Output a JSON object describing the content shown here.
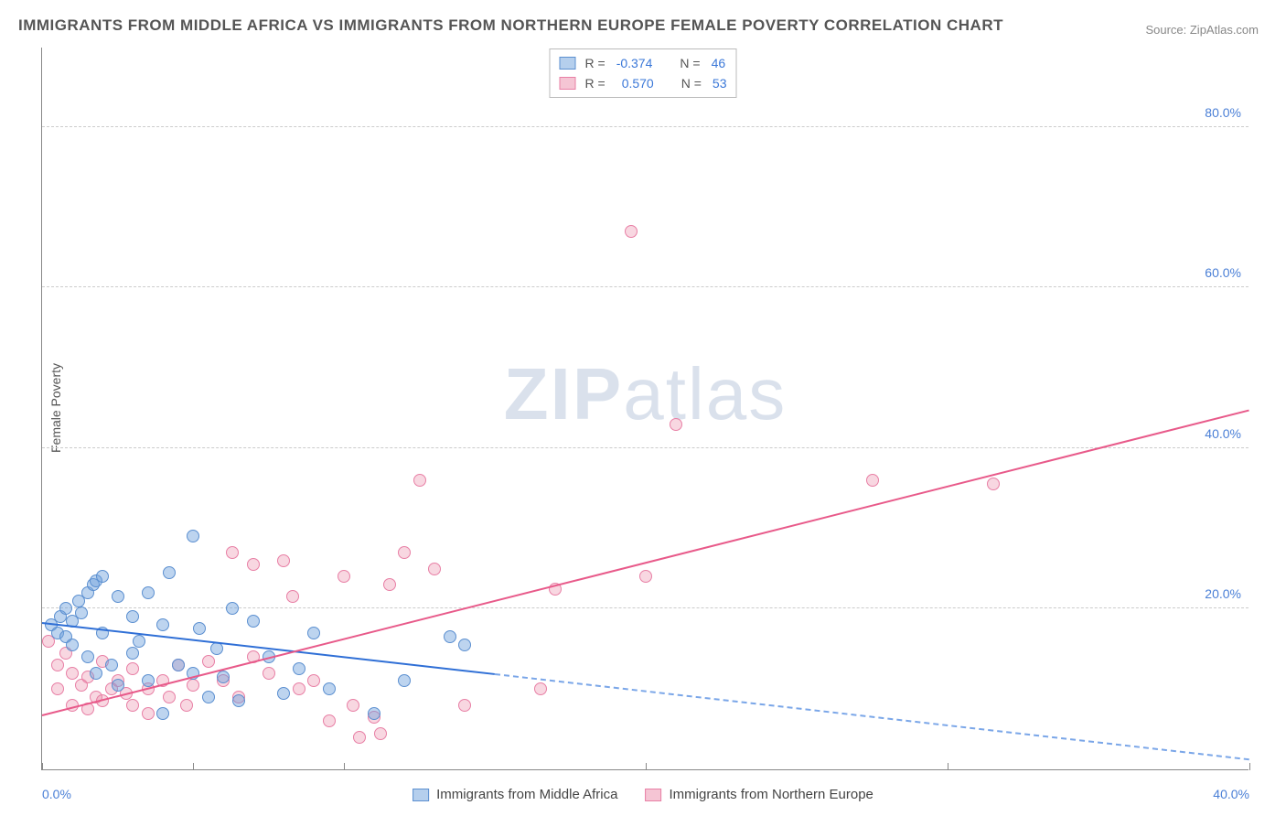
{
  "title": "IMMIGRANTS FROM MIDDLE AFRICA VS IMMIGRANTS FROM NORTHERN EUROPE FEMALE POVERTY CORRELATION CHART",
  "source_label": "Source: ",
  "source_site": "ZipAtlas.com",
  "ylabel": "Female Poverty",
  "watermark_bold": "ZIP",
  "watermark_rest": "atlas",
  "chart": {
    "type": "scatter",
    "background_color": "#ffffff",
    "grid_color": "#cccccc",
    "axis_color": "#888888",
    "tick_font_color": "#4a7fd6",
    "tick_fontsize": 14,
    "xlim": [
      0,
      40
    ],
    "ylim": [
      0,
      90
    ],
    "xticks": [
      0,
      5,
      10,
      20,
      30,
      40
    ],
    "xtick_labels": {
      "0": "0.0%",
      "40": "40.0%"
    },
    "yticks": [
      20,
      40,
      60,
      80
    ],
    "ytick_labels": {
      "20": "20.0%",
      "40": "40.0%",
      "60": "60.0%",
      "80": "80.0%"
    },
    "marker_radius": 7,
    "marker_fill_opacity": 0.4
  },
  "series": {
    "blue": {
      "label": "Immigrants from Middle Africa",
      "color_fill": "#6c9fdc",
      "color_stroke": "#5b8fd0",
      "R": "-0.374",
      "N": "46",
      "trend": {
        "x1": 0,
        "y1": 18.5,
        "x2": 40,
        "y2": 1.5,
        "solid_until_x": 15,
        "color": "#2f6fd6"
      },
      "points": [
        [
          0.3,
          18
        ],
        [
          0.5,
          17
        ],
        [
          0.6,
          19
        ],
        [
          0.8,
          16.5
        ],
        [
          0.8,
          20
        ],
        [
          1.0,
          18.5
        ],
        [
          1.0,
          15.5
        ],
        [
          1.2,
          21
        ],
        [
          1.3,
          19.5
        ],
        [
          1.5,
          14
        ],
        [
          1.5,
          22
        ],
        [
          1.7,
          23
        ],
        [
          1.8,
          12
        ],
        [
          1.8,
          23.5
        ],
        [
          2.0,
          17
        ],
        [
          2.0,
          24
        ],
        [
          2.3,
          13
        ],
        [
          2.5,
          21.5
        ],
        [
          2.5,
          10.5
        ],
        [
          3.0,
          14.5
        ],
        [
          3.0,
          19
        ],
        [
          3.2,
          16
        ],
        [
          3.5,
          11
        ],
        [
          3.5,
          22
        ],
        [
          4.0,
          7
        ],
        [
          4.0,
          18
        ],
        [
          4.2,
          24.5
        ],
        [
          4.5,
          13
        ],
        [
          5.0,
          29
        ],
        [
          5.0,
          12
        ],
        [
          5.2,
          17.5
        ],
        [
          5.5,
          9
        ],
        [
          5.8,
          15
        ],
        [
          6.0,
          11.5
        ],
        [
          6.3,
          20
        ],
        [
          6.5,
          8.5
        ],
        [
          7.0,
          18.5
        ],
        [
          7.5,
          14
        ],
        [
          8.0,
          9.5
        ],
        [
          8.5,
          12.5
        ],
        [
          9.0,
          17
        ],
        [
          9.5,
          10
        ],
        [
          11.0,
          7
        ],
        [
          12.0,
          11
        ],
        [
          13.5,
          16.5
        ],
        [
          14.0,
          15.5
        ]
      ]
    },
    "pink": {
      "label": "Immigrants from Northern Europe",
      "color_fill": "#ec8caa",
      "color_stroke": "#e87fa5",
      "R": "0.570",
      "N": "53",
      "trend": {
        "x1": 0,
        "y1": 7,
        "x2": 40,
        "y2": 45,
        "color": "#e85a8a"
      },
      "points": [
        [
          0.2,
          16
        ],
        [
          0.5,
          13
        ],
        [
          0.5,
          10
        ],
        [
          0.8,
          14.5
        ],
        [
          1.0,
          12
        ],
        [
          1.0,
          8
        ],
        [
          1.3,
          10.5
        ],
        [
          1.5,
          11.5
        ],
        [
          1.5,
          7.5
        ],
        [
          1.8,
          9
        ],
        [
          2.0,
          8.5
        ],
        [
          2.0,
          13.5
        ],
        [
          2.3,
          10
        ],
        [
          2.5,
          11
        ],
        [
          2.8,
          9.5
        ],
        [
          3.0,
          8
        ],
        [
          3.0,
          12.5
        ],
        [
          3.5,
          10
        ],
        [
          3.5,
          7
        ],
        [
          4.0,
          11
        ],
        [
          4.2,
          9
        ],
        [
          4.5,
          13
        ],
        [
          4.8,
          8
        ],
        [
          5.0,
          10.5
        ],
        [
          5.5,
          13.5
        ],
        [
          6.0,
          11
        ],
        [
          6.3,
          27
        ],
        [
          6.5,
          9
        ],
        [
          7.0,
          14
        ],
        [
          7.0,
          25.5
        ],
        [
          7.5,
          12
        ],
        [
          8.0,
          26
        ],
        [
          8.3,
          21.5
        ],
        [
          8.5,
          10
        ],
        [
          9.0,
          11
        ],
        [
          9.5,
          6
        ],
        [
          10.0,
          24
        ],
        [
          10.3,
          8
        ],
        [
          10.5,
          4
        ],
        [
          11.0,
          6.5
        ],
        [
          11.2,
          4.5
        ],
        [
          11.5,
          23
        ],
        [
          12.0,
          27
        ],
        [
          12.5,
          36
        ],
        [
          13.0,
          25
        ],
        [
          14.0,
          8
        ],
        [
          16.5,
          10
        ],
        [
          17.0,
          22.5
        ],
        [
          19.5,
          67
        ],
        [
          20.0,
          24
        ],
        [
          21.0,
          43
        ],
        [
          27.5,
          36
        ],
        [
          31.5,
          35.5
        ]
      ]
    }
  },
  "legend_top_labels": {
    "R": "R =",
    "N": "N ="
  }
}
